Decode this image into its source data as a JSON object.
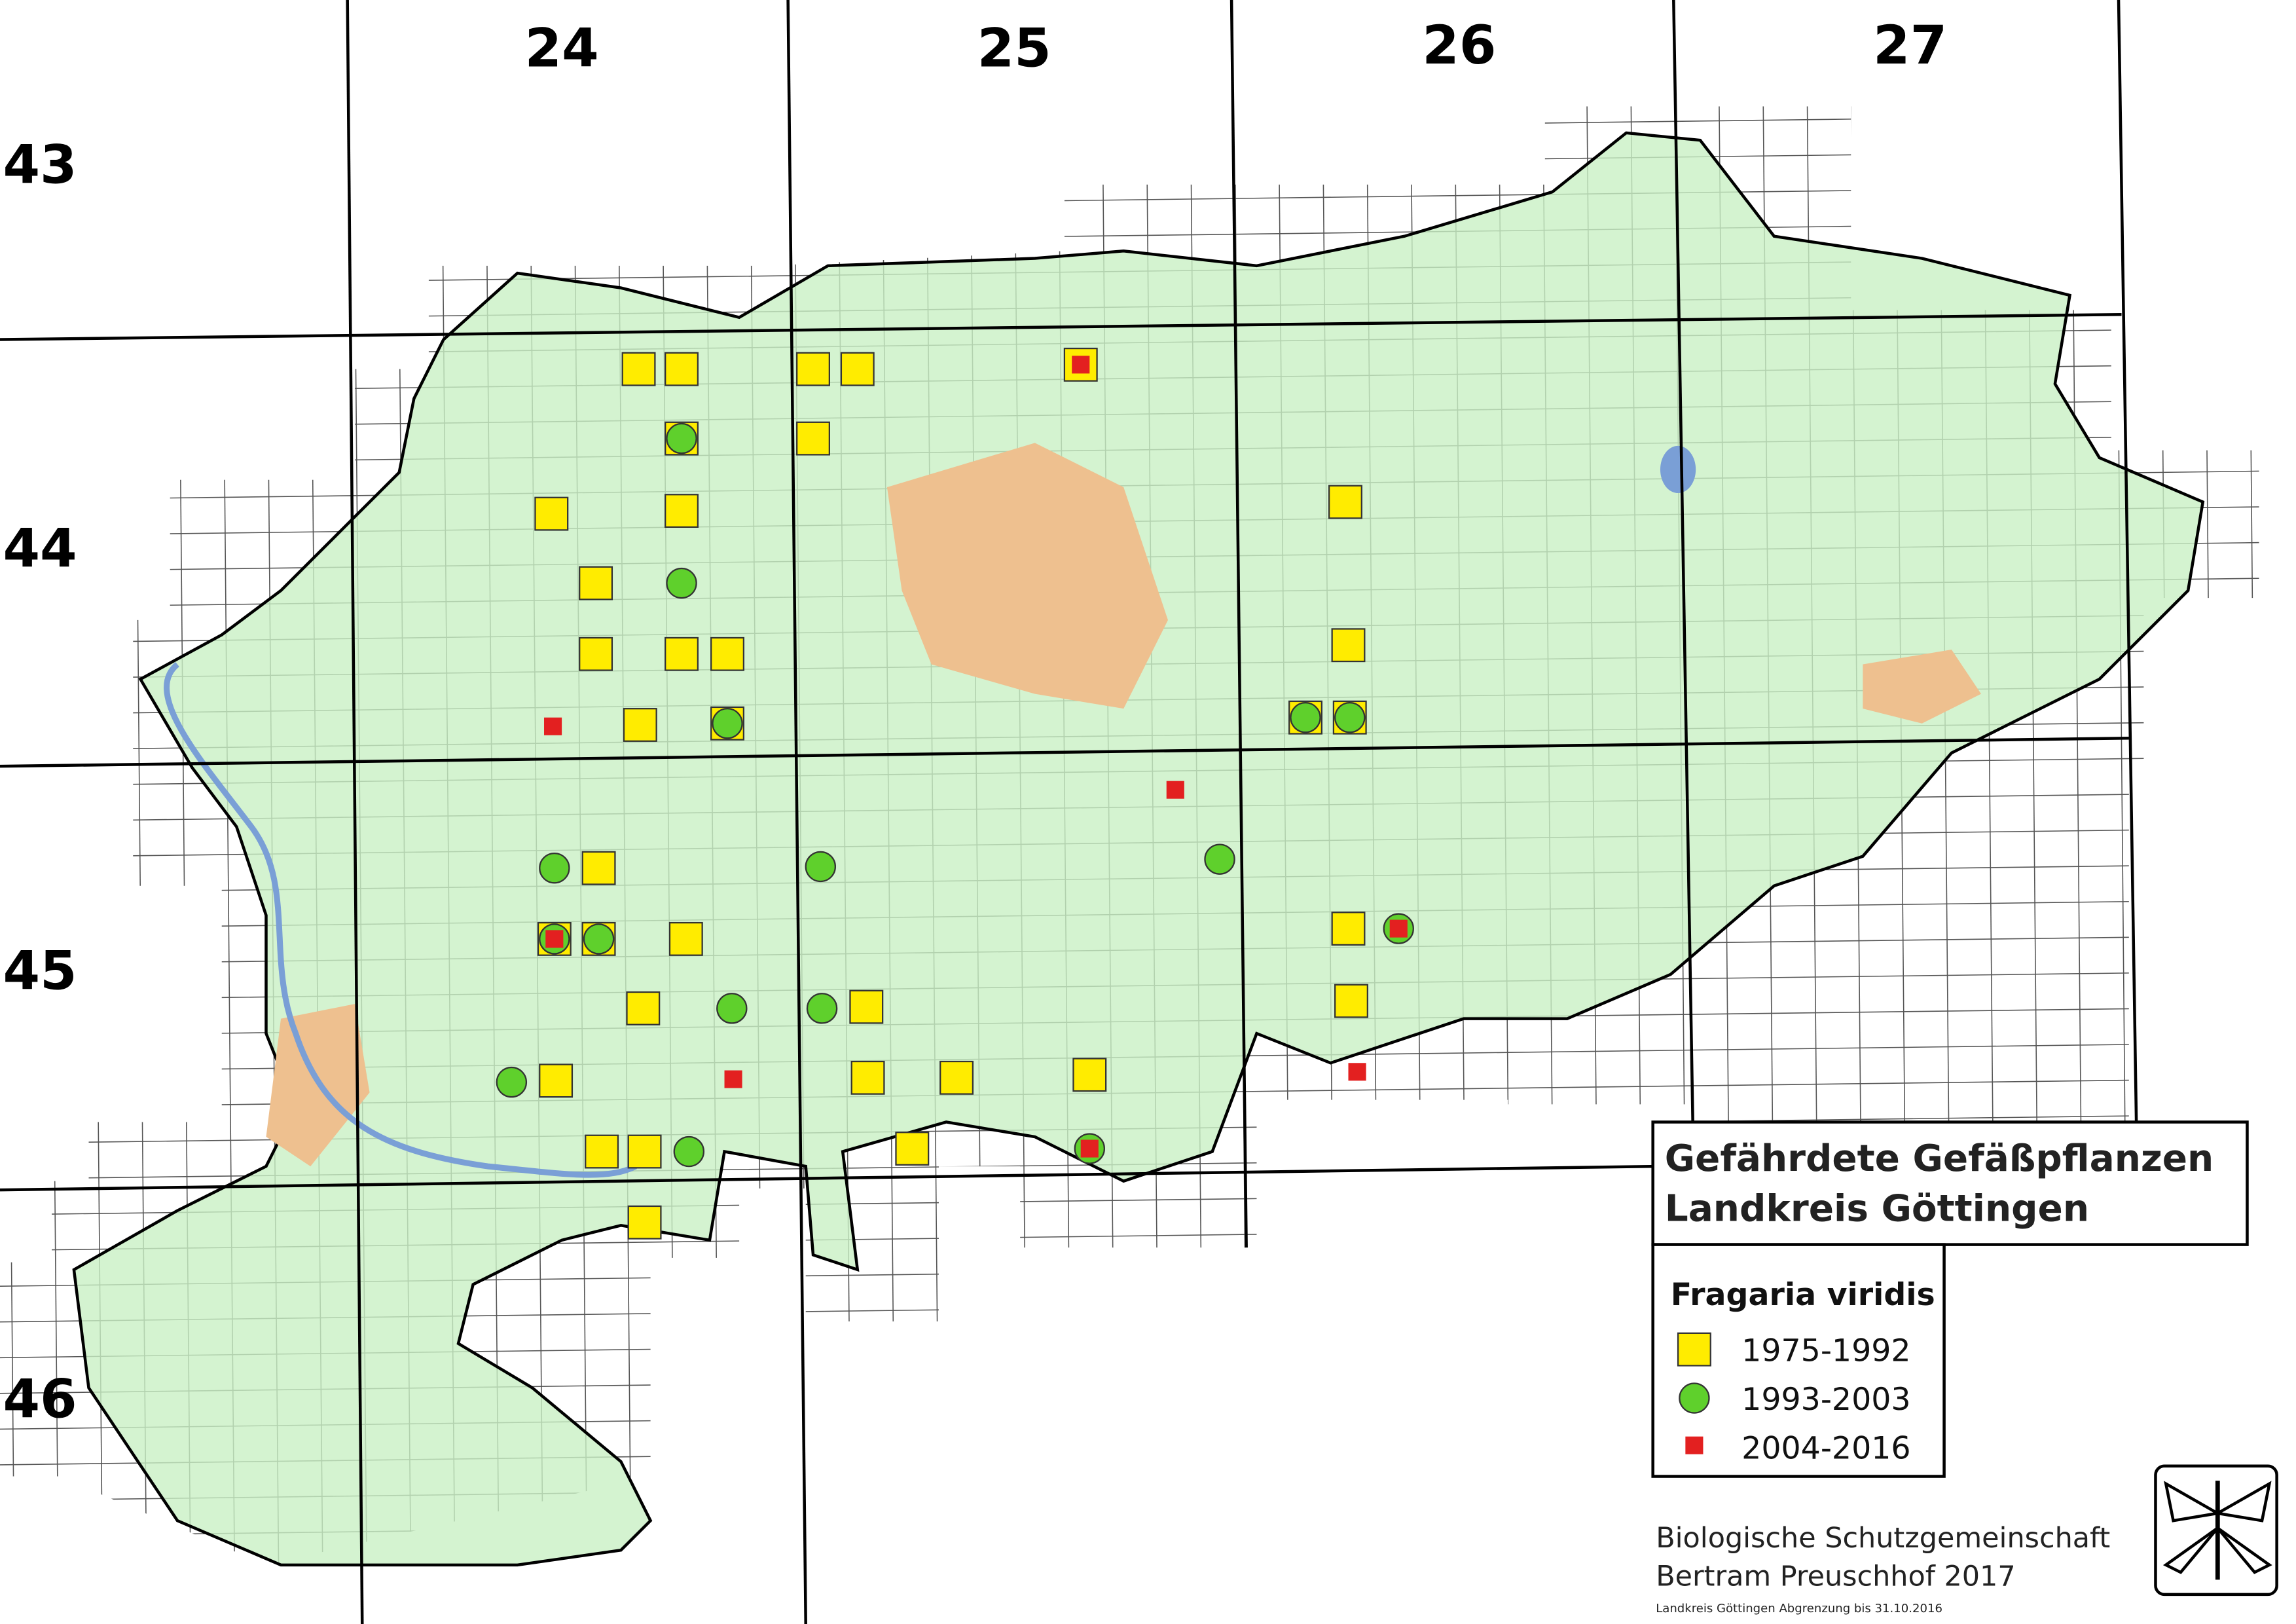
{
  "map": {
    "column_labels": [
      "24",
      "25",
      "26",
      "27"
    ],
    "row_labels": [
      "43",
      "44",
      "45",
      "46"
    ],
    "title": [
      "Gefährdete Gefäßpflanzen",
      "Landkreis Göttingen"
    ],
    "legend": {
      "species": "Fragaria viridis",
      "entries": [
        "1975-1992",
        "1993-2003",
        "2004-2016"
      ]
    },
    "credits": [
      "Biologische Schutzgemeinschaft",
      "Bertram Preuschhof 2017"
    ],
    "footnote": "Landkreis Göttingen Abgrenzung bis 31.10.2016"
  }
}
